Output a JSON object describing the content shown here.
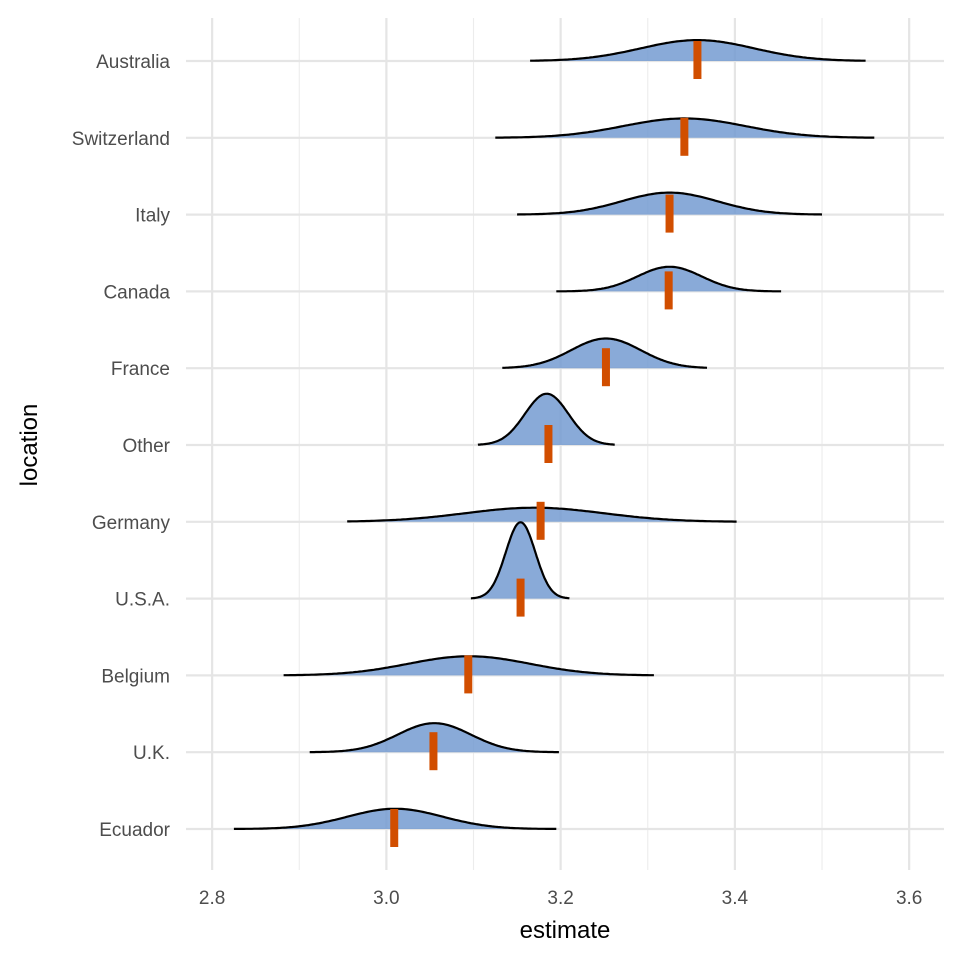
{
  "chart_data": {
    "type": "ridgeline",
    "xlabel": "estimate",
    "ylabel": "location",
    "xlim": [
      2.77,
      3.64
    ],
    "x_ticks": [
      2.8,
      3.0,
      3.2,
      3.4,
      3.6
    ],
    "x_tick_labels": [
      "2.8",
      "3.0",
      "3.2",
      "3.4",
      "3.6"
    ],
    "grid": true,
    "colors": {
      "fill": "#6f97cf",
      "outline": "#000000",
      "marker": "#d14e00"
    },
    "series": [
      {
        "category": "Australia",
        "center": 3.357,
        "sd": 0.065,
        "x_min": 3.165,
        "x_max": 3.55,
        "peak": 0.95,
        "marker": 3.357
      },
      {
        "category": "Switzerland",
        "center": 3.342,
        "sd": 0.07,
        "x_min": 3.125,
        "x_max": 3.56,
        "peak": 0.88,
        "marker": 3.342
      },
      {
        "category": "Italy",
        "center": 3.325,
        "sd": 0.055,
        "x_min": 3.15,
        "x_max": 3.5,
        "peak": 1.0,
        "marker": 3.325
      },
      {
        "category": "Canada",
        "center": 3.325,
        "sd": 0.037,
        "x_min": 3.195,
        "x_max": 3.453,
        "peak": 1.12,
        "marker": 3.324
      },
      {
        "category": "France",
        "center": 3.252,
        "sd": 0.04,
        "x_min": 3.133,
        "x_max": 3.368,
        "peak": 1.35,
        "marker": 3.252
      },
      {
        "category": "Other",
        "center": 3.184,
        "sd": 0.025,
        "x_min": 3.105,
        "x_max": 3.262,
        "peak": 2.33,
        "marker": 3.186
      },
      {
        "category": "Germany",
        "center": 3.17,
        "sd": 0.08,
        "x_min": 2.955,
        "x_max": 3.402,
        "peak": 0.64,
        "marker": 3.177
      },
      {
        "category": "U.S.A.",
        "center": 3.154,
        "sd": 0.017,
        "x_min": 3.097,
        "x_max": 3.21,
        "peak": 3.47,
        "marker": 3.154
      },
      {
        "category": "Belgium",
        "center": 3.095,
        "sd": 0.07,
        "x_min": 2.882,
        "x_max": 3.307,
        "peak": 0.87,
        "marker": 3.094
      },
      {
        "category": "U.K.",
        "center": 3.055,
        "sd": 0.042,
        "x_min": 2.912,
        "x_max": 3.198,
        "peak": 1.32,
        "marker": 3.054
      },
      {
        "category": "Ecuador",
        "center": 3.01,
        "sd": 0.055,
        "x_min": 2.825,
        "x_max": 3.195,
        "peak": 0.92,
        "marker": 3.009
      }
    ]
  }
}
